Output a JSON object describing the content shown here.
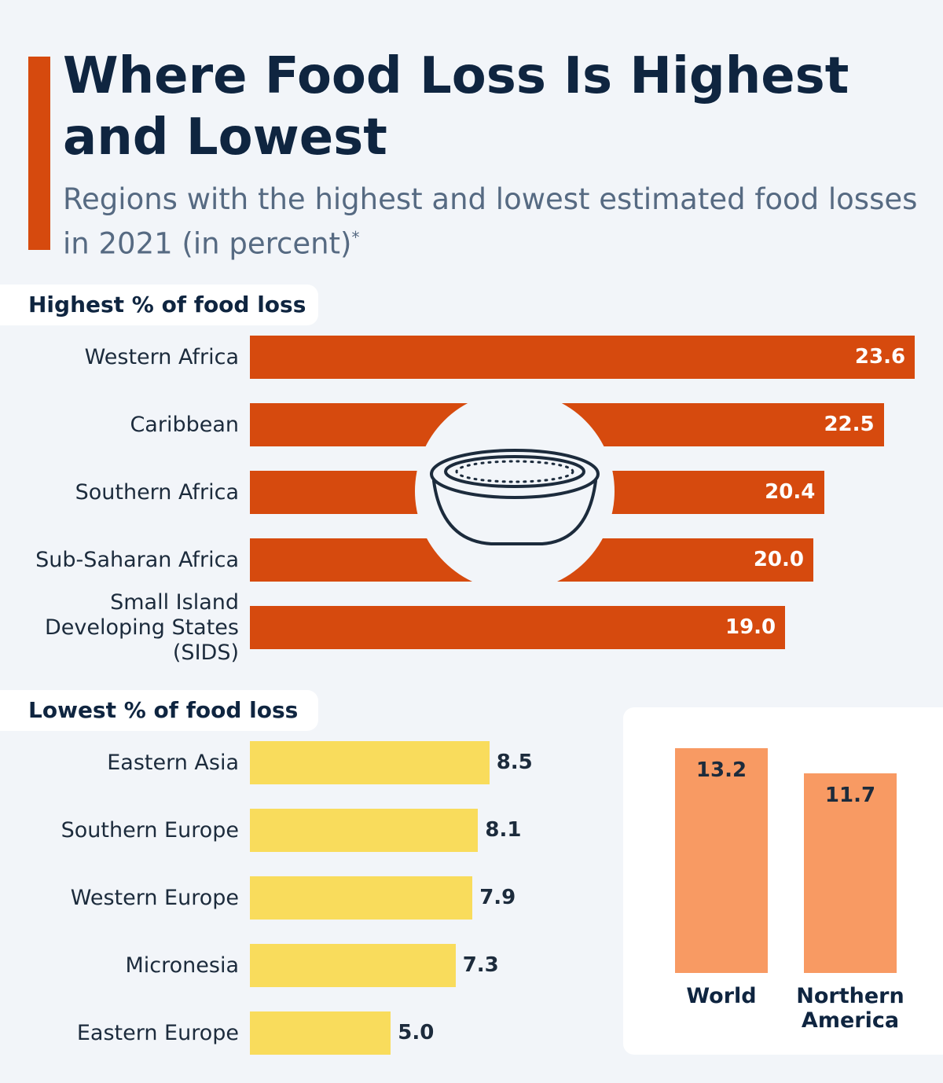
{
  "title": "Where Food Loss Is Highest and Lowest",
  "subtitle": "Regions with the highest and lowest estimated food losses in 2021 (in percent)",
  "footnote_marker": "*",
  "chart_data": [
    {
      "type": "bar",
      "orientation": "horizontal",
      "title": "Highest % of food loss",
      "categories": [
        "Western Africa",
        "Caribbean",
        "Southern Africa",
        "Sub-Saharan Africa",
        "Small Island Developing States (SIDS)"
      ],
      "values": [
        23.6,
        22.5,
        20.4,
        20.0,
        19.0
      ],
      "value_labels": [
        "23.6",
        "22.5",
        "20.4",
        "20.0",
        "19.0"
      ],
      "color": "#d64a0e",
      "label_position": "inside"
    },
    {
      "type": "bar",
      "orientation": "horizontal",
      "title": "Lowest % of food loss",
      "categories": [
        "Eastern Asia",
        "Southern Europe",
        "Western Europe",
        "Micronesia",
        "Eastern Europe"
      ],
      "values": [
        8.5,
        8.1,
        7.9,
        7.3,
        5.0
      ],
      "value_labels": [
        "8.5",
        "8.1",
        "7.9",
        "7.3",
        "5.0"
      ],
      "color": "#f9dc5c",
      "label_position": "outside"
    },
    {
      "type": "column",
      "categories": [
        "World",
        "Northern America"
      ],
      "values": [
        13.2,
        11.7
      ],
      "value_labels": [
        "13.2",
        "11.7"
      ],
      "color": "#f89a63"
    }
  ]
}
